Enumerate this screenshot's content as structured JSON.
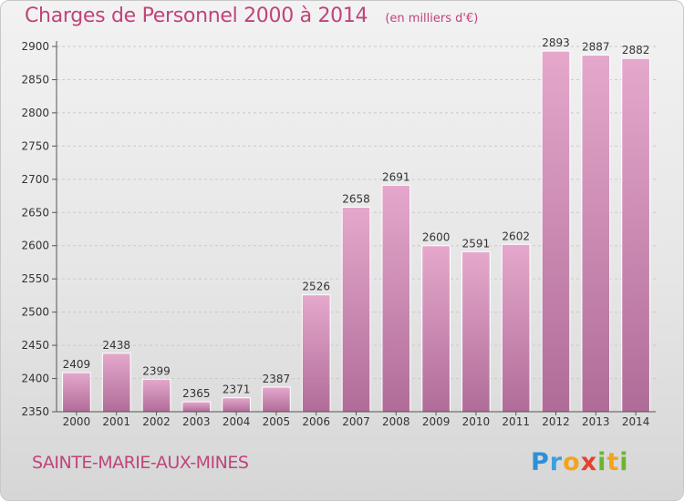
{
  "title": "Charges de Personnel 2000 à 2014",
  "subtitle": "(en milliers d'€)",
  "commune": "SAINTE-MARIE-AUX-MINES",
  "logo_text": "Proxiti",
  "colors": {
    "title": "#c0447a",
    "bar_top": "#e5a8cc",
    "bar_bottom": "#b06c98",
    "grid": "#c9c9c9",
    "axis": "#555555"
  },
  "chart_data": {
    "type": "bar",
    "title": "Charges de Personnel 2000 à 2014",
    "subtitle": "(en milliers d'€)",
    "categories": [
      "2000",
      "2001",
      "2002",
      "2003",
      "2004",
      "2005",
      "2006",
      "2007",
      "2008",
      "2009",
      "2010",
      "2011",
      "2012",
      "2013",
      "2014"
    ],
    "values": [
      2409,
      2438,
      2399,
      2365,
      2371,
      2387,
      2526,
      2658,
      2691,
      2600,
      2591,
      2602,
      2893,
      2887,
      2882
    ],
    "ylim": [
      2350,
      2900
    ],
    "yticks": [
      2350,
      2400,
      2450,
      2500,
      2550,
      2600,
      2650,
      2700,
      2750,
      2800,
      2850,
      2900
    ],
    "grid": true,
    "xlabel": "",
    "ylabel": ""
  }
}
